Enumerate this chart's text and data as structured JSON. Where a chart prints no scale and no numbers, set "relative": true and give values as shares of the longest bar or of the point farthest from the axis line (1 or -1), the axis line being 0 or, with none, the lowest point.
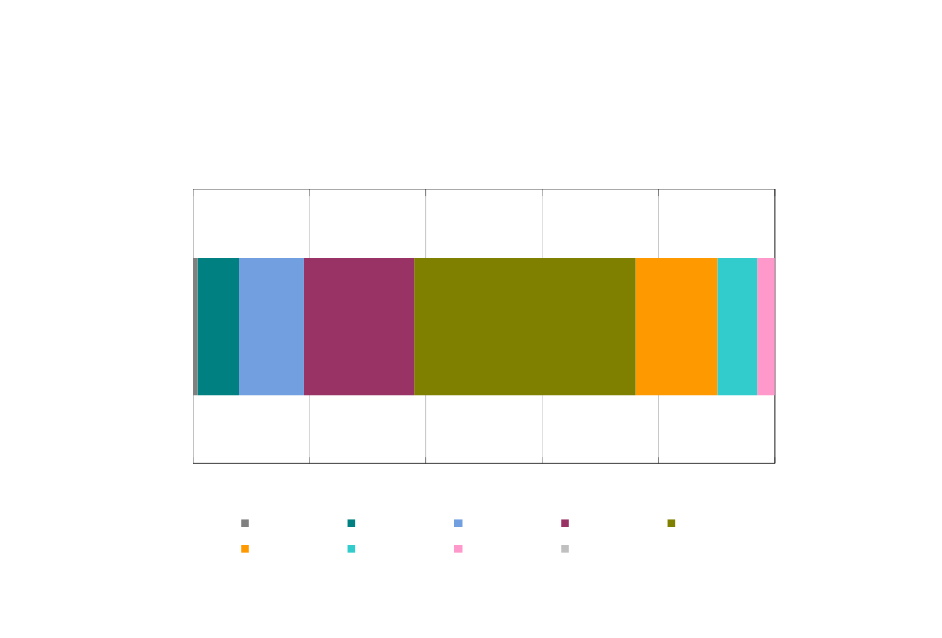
{
  "chart_data": {
    "type": "bar",
    "orientation": "horizontal",
    "stacked": true,
    "relative": true,
    "grid": "x",
    "categories": [
      null
    ],
    "series": [
      {
        "color": "#808080",
        "values": [
          0.008
        ]
      },
      {
        "color": "#008080",
        "values": [
          0.07
        ]
      },
      {
        "color": "#729fdf",
        "values": [
          0.112
        ]
      },
      {
        "color": "#993366",
        "values": [
          0.19
        ]
      },
      {
        "color": "#808000",
        "values": [
          0.38
        ]
      },
      {
        "color": "#ff9900",
        "values": [
          0.141
        ]
      },
      {
        "color": "#33cccc",
        "values": [
          0.069
        ]
      },
      {
        "color": "#ff99cc",
        "values": [
          0.03
        ]
      },
      {
        "color": "#c0c0c0",
        "values": [
          0
        ]
      }
    ]
  }
}
